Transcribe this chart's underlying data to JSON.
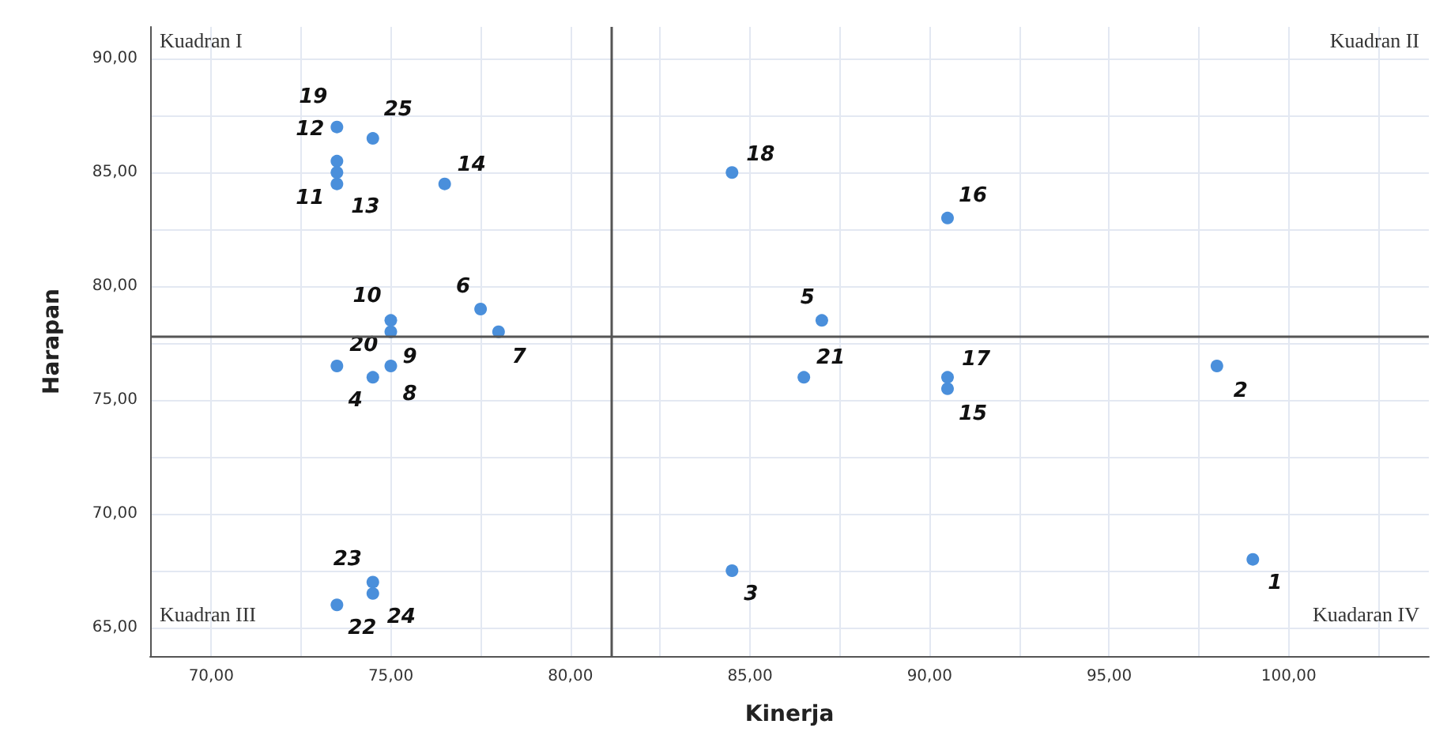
{
  "chart_data": {
    "type": "scatter",
    "xlabel": "Kinerja",
    "ylabel": "Harapan",
    "x": [
      99.0,
      98.0,
      84.5,
      74.5,
      87.0,
      77.5,
      78.0,
      75.0,
      75.0,
      75.0,
      73.5,
      73.5,
      73.5,
      76.5,
      90.5,
      90.5,
      90.5,
      84.5,
      73.5,
      73.5,
      86.5,
      73.5,
      74.5,
      74.5,
      74.5
    ],
    "series": [
      {
        "color": "#4a8fdb",
        "values": [
          68.0,
          76.5,
          67.5,
          76.0,
          78.5,
          79.0,
          78.0,
          76.5,
          78.0,
          78.5,
          84.5,
          85.5,
          85.0,
          84.5,
          75.5,
          83.0,
          76.0,
          85.0,
          87.0,
          76.5,
          76.0,
          66.0,
          67.0,
          66.5,
          86.5
        ]
      }
    ],
    "xlim": [
      68.3,
      103.9
    ],
    "ylim": [
      63.75,
      91.4
    ],
    "xticks": [
      {
        "value": 70,
        "label": "70,00"
      },
      {
        "value": 72.5,
        "label": null
      },
      {
        "value": 75,
        "label": "75,00"
      },
      {
        "value": 77.5,
        "label": null
      },
      {
        "value": 80,
        "label": "80,00"
      },
      {
        "value": 82.5,
        "label": null
      },
      {
        "value": 85,
        "label": "85,00"
      },
      {
        "value": 87.5,
        "label": null
      },
      {
        "value": 90,
        "label": "90,00"
      },
      {
        "value": 92.5,
        "label": null
      },
      {
        "value": 95,
        "label": "95,00"
      },
      {
        "value": 97.5,
        "label": null
      },
      {
        "value": 100,
        "label": "100,00"
      },
      {
        "value": 102.5,
        "label": null
      }
    ],
    "yticks": [
      {
        "value": 65,
        "label": "65,00"
      },
      {
        "value": 67.5,
        "label": null
      },
      {
        "value": 70,
        "label": "70,00"
      },
      {
        "value": 72.5,
        "label": null
      },
      {
        "value": 75,
        "label": "75,00"
      },
      {
        "value": 77.5,
        "label": null
      },
      {
        "value": 80,
        "label": "80,00"
      },
      {
        "value": 82.5,
        "label": null
      },
      {
        "value": 85,
        "label": "85,00"
      },
      {
        "value": 87.5,
        "label": null
      },
      {
        "value": 90,
        "label": "90,00"
      }
    ],
    "grid": true,
    "marker": "circle",
    "ref_lines": [
      {
        "axis": "x",
        "value": 81.15,
        "color": "#555555"
      },
      {
        "axis": "y",
        "value": 77.78,
        "color": "#555555"
      }
    ],
    "annotations": [
      "Kuadran I",
      "Kuadran II",
      "Kuadran III",
      "Kuadaran IV",
      {
        "text": "1",
        "x": 99.0,
        "y": 68.0
      },
      {
        "text": "2",
        "x": 98.0,
        "y": 76.5
      },
      {
        "text": "3",
        "x": 84.5,
        "y": 67.5
      },
      {
        "text": "4",
        "x": 74.5,
        "y": 76.0
      },
      {
        "text": "5",
        "x": 87.0,
        "y": 78.5
      },
      {
        "text": "6",
        "x": 77.5,
        "y": 79.0
      },
      {
        "text": "7",
        "x": 78.0,
        "y": 78.0
      },
      {
        "text": "8",
        "x": 75.0,
        "y": 76.5
      },
      {
        "text": "9",
        "x": 75.0,
        "y": 78.0
      },
      {
        "text": "10",
        "x": 75.0,
        "y": 78.5
      },
      {
        "text": "11",
        "x": 73.5,
        "y": 84.5
      },
      {
        "text": "12",
        "x": 73.5,
        "y": 85.5
      },
      {
        "text": "13",
        "x": 73.5,
        "y": 85.0
      },
      {
        "text": "14",
        "x": 76.5,
        "y": 84.5
      },
      {
        "text": "15",
        "x": 90.5,
        "y": 75.5
      },
      {
        "text": "16",
        "x": 90.5,
        "y": 83.0
      },
      {
        "text": "17",
        "x": 90.5,
        "y": 76.0
      },
      {
        "text": "18",
        "x": 84.5,
        "y": 85.0
      },
      {
        "text": "19",
        "x": 73.5,
        "y": 87.0
      },
      {
        "text": "20",
        "x": 73.5,
        "y": 76.5
      },
      {
        "text": "21",
        "x": 86.5,
        "y": 76.0
      },
      {
        "text": "22",
        "x": 73.5,
        "y": 66.0
      },
      {
        "text": "23",
        "x": 74.5,
        "y": 67.0
      },
      {
        "text": "24",
        "x": 74.5,
        "y": 66.5
      },
      {
        "text": "25",
        "x": 74.5,
        "y": 86.5
      }
    ]
  }
}
